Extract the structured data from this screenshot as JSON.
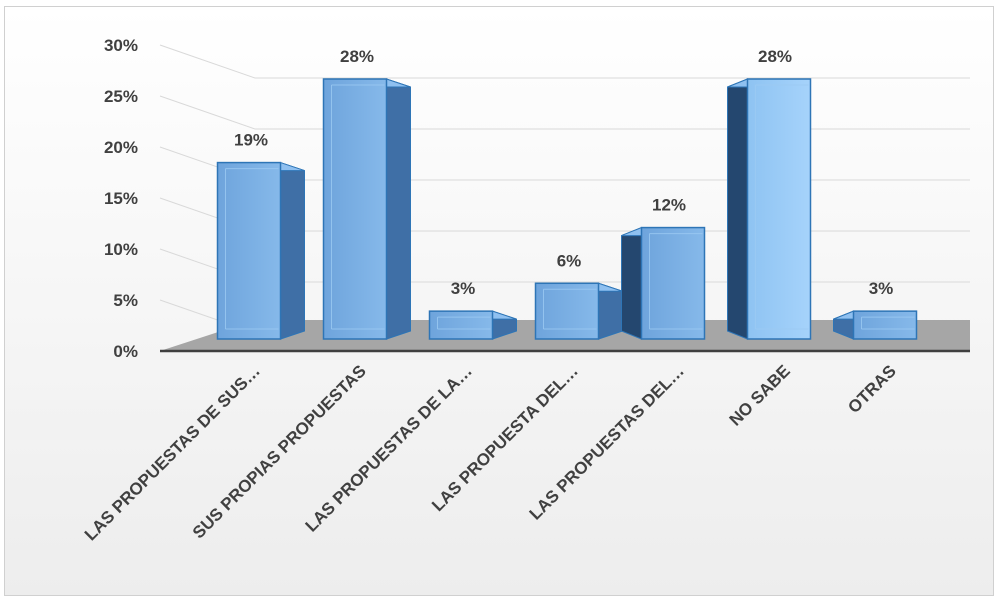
{
  "chart_data": {
    "type": "bar",
    "style": "3d-column",
    "categories": [
      "LAS PROPUESTAS DE SUS…",
      "SUS PROPIAS PROPUESTAS",
      "LAS PROPUESTAS DE LA…",
      "LAS PROPUESTA DEL…",
      "LAS PROPUESTAS DEL…",
      "NO SABE",
      "OTRAS"
    ],
    "values": [
      0.19,
      0.28,
      0.03,
      0.06,
      0.12,
      0.28,
      0.03
    ],
    "data_labels": [
      "19%",
      "28%",
      "3%",
      "6%",
      "12%",
      "28%",
      "3%"
    ],
    "y_ticks": [
      "0%",
      "5%",
      "10%",
      "15%",
      "20%",
      "25%",
      "30%"
    ],
    "ylim": [
      0,
      0.3
    ],
    "title": "",
    "xlabel": "",
    "ylabel": "",
    "grid": true,
    "legend": "none",
    "colors": {
      "bar_front": "#7fb0e3",
      "bar_top": "#8fc0f0",
      "bar_side": "#3f6fa6",
      "bar_edge": "#2e75b6",
      "floor": "#a6a6a6",
      "grid": "#d9d9d9",
      "text": "#404040"
    }
  }
}
